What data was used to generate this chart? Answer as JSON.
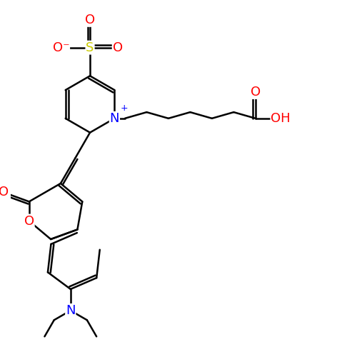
{
  "bg_color": "#ffffff",
  "bond_color": "#000000",
  "bond_width": 1.8,
  "dbo": 0.08,
  "atom_colors": {
    "N_pos": "#0000ff",
    "N_neu": "#0000ff",
    "O": "#ff0000",
    "S": "#cccc00"
  },
  "font_size": 13,
  "fig_width": 5.0,
  "fig_height": 5.0,
  "dpi": 100,
  "xlim": [
    0,
    10
  ],
  "ylim": [
    0,
    10
  ]
}
